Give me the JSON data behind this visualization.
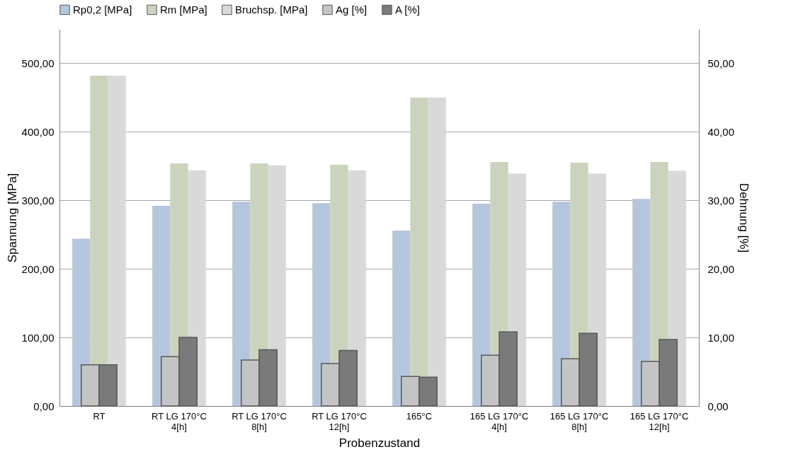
{
  "chart_data": {
    "type": "bar",
    "xlabel": "Probenzustand",
    "ylabel": "Spannung [MPa]",
    "y2label": "Dehnung [%]",
    "categories": [
      "RT",
      "RT LG 170°C 4[h]",
      "RT LG 170°C 8[h]",
      "RT LG 170°C 12[h]",
      "165°C",
      "165 LG 170°C 4[h]",
      "165 LG 170°C 8[h]",
      "165 LG 170°C 12[h]"
    ],
    "series": [
      {
        "name": "Rp0,2 [MPa]",
        "color": "#b3c6dd",
        "values": [
          244,
          292,
          298,
          296,
          256,
          295,
          298,
          302
        ]
      },
      {
        "name": "Rm [MPa]",
        "color": "#cad4bd",
        "values": [
          482,
          354,
          354,
          352,
          450,
          356,
          355,
          356
        ]
      },
      {
        "name": "Bruchsp. [MPa]",
        "color": "#d9d9d9",
        "values": [
          482,
          344,
          351,
          344,
          450,
          339,
          339,
          343
        ]
      },
      {
        "name": "Ag [%]",
        "color": "#c4c4c4",
        "axis": "y2",
        "values": [
          6.0,
          7.2,
          6.7,
          6.2,
          4.3,
          7.4,
          6.9,
          6.5
        ]
      },
      {
        "name": "A [%]",
        "color": "#7a7a7a",
        "axis": "y2",
        "values": [
          6.0,
          10.0,
          8.2,
          8.1,
          4.2,
          10.8,
          10.6,
          9.7
        ]
      }
    ],
    "ylim": [
      0,
      550
    ],
    "yticks": [
      {
        "value": 0,
        "label": "0,00"
      },
      {
        "value": 100,
        "label": "100,00"
      },
      {
        "value": 200,
        "label": "200,00"
      },
      {
        "value": 300,
        "label": "300,00"
      },
      {
        "value": 400,
        "label": "400,00"
      },
      {
        "value": 500,
        "label": "500,00"
      }
    ],
    "y2lim": [
      0,
      55
    ],
    "y2ticks": [
      {
        "value": 0,
        "label": "0,00"
      },
      {
        "value": 10,
        "label": "10,00"
      },
      {
        "value": 20,
        "label": "20,00"
      },
      {
        "value": 30,
        "label": "30,00"
      },
      {
        "value": 40,
        "label": "40,00"
      },
      {
        "value": 50,
        "label": "50,00"
      }
    ],
    "grid": "y",
    "legend": "top"
  }
}
